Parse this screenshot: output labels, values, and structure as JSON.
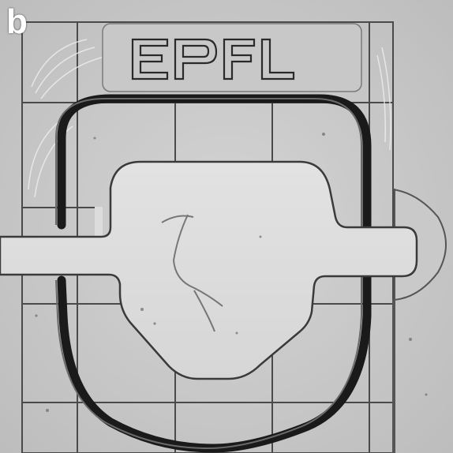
{
  "panel_label": "b",
  "logo_text": "EPFL",
  "colors": {
    "background": "#cfcfcf",
    "grid_line": "#4a4a4a",
    "channel_fill": "#dcdcdc",
    "channel_outline": "#3a3a3a",
    "ring_stroke": "#1a1a1a",
    "label_text": "#ffffff"
  }
}
